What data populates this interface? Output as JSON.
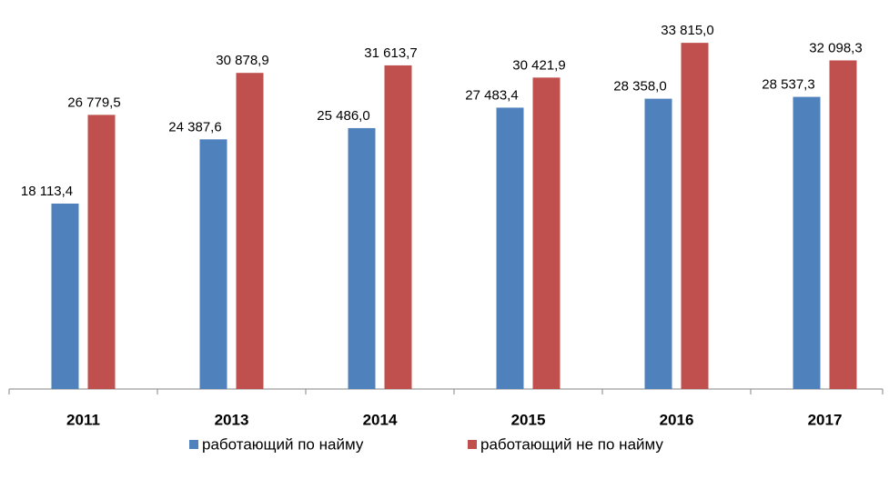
{
  "chart_data": {
    "type": "bar",
    "categories": [
      "2011",
      "2013",
      "2014",
      "2015",
      "2016",
      "2017"
    ],
    "series": [
      {
        "name": "работающий по найму",
        "color": "#4f81bd",
        "values": [
          18113.4,
          24387.6,
          25486.0,
          27483.4,
          28358.0,
          28537.3
        ],
        "value_labels": [
          "18 113,4",
          "24 387,6",
          "25 486,0",
          "27 483,4",
          "28 358,0",
          "28 537,3"
        ]
      },
      {
        "name": "работающий не по найму",
        "color": "#c0504d",
        "values": [
          26779.5,
          30878.9,
          31613.7,
          30421.9,
          33815.0,
          32098.3
        ],
        "value_labels": [
          "26 779,5",
          "30 878,9",
          "31 613,7",
          "30 421,9",
          "33 815,0",
          "32 098,3"
        ]
      }
    ],
    "ylim": [
      0,
      38000
    ],
    "legend": "bottom"
  }
}
